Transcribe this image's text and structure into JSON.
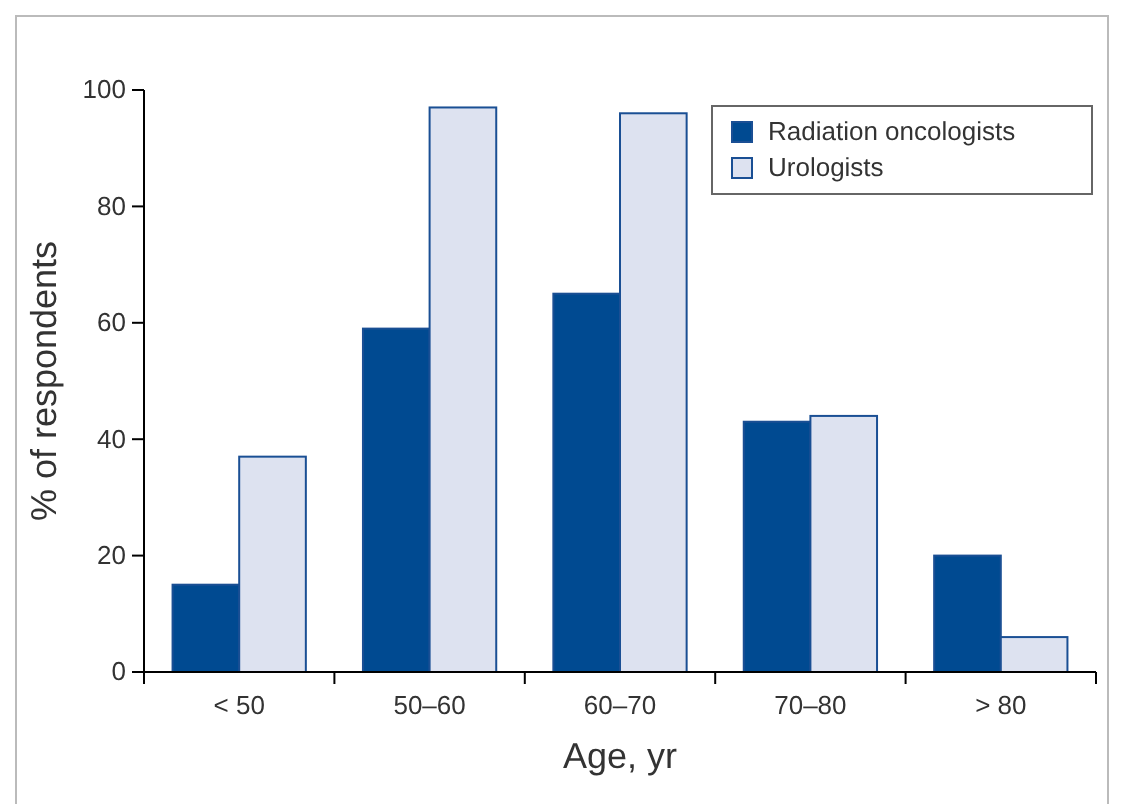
{
  "chart_data": {
    "type": "bar",
    "xlabel": "Age, yr",
    "ylabel": "% of respondents",
    "categories": [
      "< 50",
      "50–60",
      "60–70",
      "70–80",
      "> 80"
    ],
    "series": [
      {
        "name": "Radiation oncologists",
        "color": "#004a91",
        "values": [
          15,
          59,
          65,
          43,
          20
        ]
      },
      {
        "name": "Urologists",
        "color": "#dde2f0",
        "values": [
          37,
          97,
          96,
          44,
          6
        ]
      }
    ],
    "ylim": [
      0,
      100
    ],
    "yticks": [
      0,
      20,
      40,
      60,
      80,
      100
    ],
    "grid": false,
    "legend": "top right"
  }
}
